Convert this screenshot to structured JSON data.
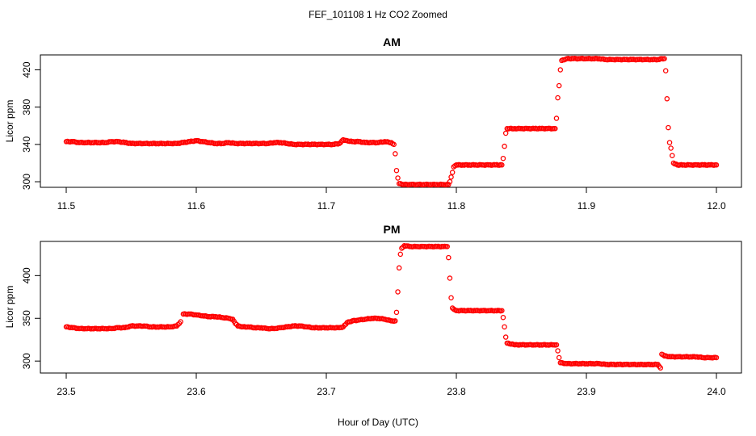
{
  "figure": {
    "title": "FEF_101108  1 Hz CO2 Zoomed",
    "xlabel": "Hour of Day (UTC)"
  },
  "chart_data": [
    {
      "type": "scatter",
      "title": "AM",
      "xlabel": "",
      "ylabel": "Licor ppm",
      "xlim": [
        11.5,
        12.0
      ],
      "ylim": [
        294,
        436
      ],
      "xticks": [
        11.5,
        11.6,
        11.7,
        11.8,
        11.9,
        12.0
      ],
      "xtick_labels": [
        "11.5",
        "11.6",
        "11.7",
        "11.8",
        "11.9",
        "12.0"
      ],
      "yticks": [
        300,
        340,
        380,
        420
      ],
      "ytick_labels": [
        "300",
        "340",
        "380",
        "420"
      ],
      "marker": "open-circle",
      "color": "#ff0000",
      "grid": false,
      "points": [
        {
          "x": 11.5,
          "y": 343
        },
        {
          "x": 11.505,
          "y": 343
        },
        {
          "x": 11.51,
          "y": 342
        },
        {
          "x": 11.515,
          "y": 342
        },
        {
          "x": 11.52,
          "y": 342
        },
        {
          "x": 11.525,
          "y": 342
        },
        {
          "x": 11.53,
          "y": 342
        },
        {
          "x": 11.535,
          "y": 343
        },
        {
          "x": 11.54,
          "y": 343
        },
        {
          "x": 11.545,
          "y": 342
        },
        {
          "x": 11.55,
          "y": 341
        },
        {
          "x": 11.555,
          "y": 341
        },
        {
          "x": 11.56,
          "y": 341
        },
        {
          "x": 11.565,
          "y": 341
        },
        {
          "x": 11.57,
          "y": 341
        },
        {
          "x": 11.575,
          "y": 341
        },
        {
          "x": 11.58,
          "y": 341
        },
        {
          "x": 11.585,
          "y": 341
        },
        {
          "x": 11.59,
          "y": 342
        },
        {
          "x": 11.595,
          "y": 343
        },
        {
          "x": 11.6,
          "y": 344
        },
        {
          "x": 11.605,
          "y": 343
        },
        {
          "x": 11.61,
          "y": 342
        },
        {
          "x": 11.615,
          "y": 341
        },
        {
          "x": 11.62,
          "y": 341
        },
        {
          "x": 11.625,
          "y": 342
        },
        {
          "x": 11.63,
          "y": 341
        },
        {
          "x": 11.635,
          "y": 341
        },
        {
          "x": 11.64,
          "y": 341
        },
        {
          "x": 11.645,
          "y": 341
        },
        {
          "x": 11.65,
          "y": 341
        },
        {
          "x": 11.655,
          "y": 341
        },
        {
          "x": 11.66,
          "y": 342
        },
        {
          "x": 11.665,
          "y": 342
        },
        {
          "x": 11.67,
          "y": 341
        },
        {
          "x": 11.675,
          "y": 340
        },
        {
          "x": 11.68,
          "y": 340
        },
        {
          "x": 11.685,
          "y": 340
        },
        {
          "x": 11.69,
          "y": 340
        },
        {
          "x": 11.695,
          "y": 340
        },
        {
          "x": 11.7,
          "y": 340
        },
        {
          "x": 11.705,
          "y": 340
        },
        {
          "x": 11.71,
          "y": 341
        },
        {
          "x": 11.713,
          "y": 345
        },
        {
          "x": 11.716,
          "y": 344
        },
        {
          "x": 11.72,
          "y": 343
        },
        {
          "x": 11.725,
          "y": 343
        },
        {
          "x": 11.73,
          "y": 342
        },
        {
          "x": 11.735,
          "y": 342
        },
        {
          "x": 11.74,
          "y": 342
        },
        {
          "x": 11.745,
          "y": 343
        },
        {
          "x": 11.75,
          "y": 342
        },
        {
          "x": 11.752,
          "y": 340
        },
        {
          "x": 11.753,
          "y": 330
        },
        {
          "x": 11.754,
          "y": 312
        },
        {
          "x": 11.755,
          "y": 304
        },
        {
          "x": 11.756,
          "y": 298
        },
        {
          "x": 11.76,
          "y": 297
        },
        {
          "x": 11.765,
          "y": 297
        },
        {
          "x": 11.77,
          "y": 297
        },
        {
          "x": 11.775,
          "y": 297
        },
        {
          "x": 11.78,
          "y": 297
        },
        {
          "x": 11.785,
          "y": 297
        },
        {
          "x": 11.79,
          "y": 297
        },
        {
          "x": 11.794,
          "y": 297
        },
        {
          "x": 11.795,
          "y": 300
        },
        {
          "x": 11.796,
          "y": 305
        },
        {
          "x": 11.797,
          "y": 310
        },
        {
          "x": 11.798,
          "y": 316
        },
        {
          "x": 11.8,
          "y": 318
        },
        {
          "x": 11.805,
          "y": 318
        },
        {
          "x": 11.81,
          "y": 318
        },
        {
          "x": 11.815,
          "y": 318
        },
        {
          "x": 11.82,
          "y": 318
        },
        {
          "x": 11.825,
          "y": 318
        },
        {
          "x": 11.83,
          "y": 318
        },
        {
          "x": 11.835,
          "y": 318
        },
        {
          "x": 11.836,
          "y": 325
        },
        {
          "x": 11.837,
          "y": 338
        },
        {
          "x": 11.838,
          "y": 352
        },
        {
          "x": 11.839,
          "y": 357
        },
        {
          "x": 11.845,
          "y": 357
        },
        {
          "x": 11.85,
          "y": 357
        },
        {
          "x": 11.855,
          "y": 357
        },
        {
          "x": 11.86,
          "y": 357
        },
        {
          "x": 11.865,
          "y": 357
        },
        {
          "x": 11.87,
          "y": 357
        },
        {
          "x": 11.875,
          "y": 357
        },
        {
          "x": 11.876,
          "y": 357
        },
        {
          "x": 11.877,
          "y": 368
        },
        {
          "x": 11.878,
          "y": 390
        },
        {
          "x": 11.879,
          "y": 403
        },
        {
          "x": 11.88,
          "y": 420
        },
        {
          "x": 11.881,
          "y": 430
        },
        {
          "x": 11.885,
          "y": 432
        },
        {
          "x": 11.89,
          "y": 432
        },
        {
          "x": 11.895,
          "y": 432
        },
        {
          "x": 11.9,
          "y": 432
        },
        {
          "x": 11.905,
          "y": 432
        },
        {
          "x": 11.91,
          "y": 432
        },
        {
          "x": 11.915,
          "y": 431
        },
        {
          "x": 11.92,
          "y": 431
        },
        {
          "x": 11.925,
          "y": 431
        },
        {
          "x": 11.93,
          "y": 431
        },
        {
          "x": 11.935,
          "y": 431
        },
        {
          "x": 11.94,
          "y": 431
        },
        {
          "x": 11.945,
          "y": 431
        },
        {
          "x": 11.95,
          "y": 431
        },
        {
          "x": 11.955,
          "y": 431
        },
        {
          "x": 11.958,
          "y": 432
        },
        {
          "x": 11.96,
          "y": 432
        },
        {
          "x": 11.961,
          "y": 419
        },
        {
          "x": 11.962,
          "y": 389
        },
        {
          "x": 11.963,
          "y": 358
        },
        {
          "x": 11.964,
          "y": 342
        },
        {
          "x": 11.965,
          "y": 336
        },
        {
          "x": 11.966,
          "y": 328
        },
        {
          "x": 11.967,
          "y": 320
        },
        {
          "x": 11.97,
          "y": 318
        },
        {
          "x": 11.975,
          "y": 318
        },
        {
          "x": 11.98,
          "y": 318
        },
        {
          "x": 11.985,
          "y": 318
        },
        {
          "x": 11.99,
          "y": 318
        },
        {
          "x": 11.995,
          "y": 318
        },
        {
          "x": 12.0,
          "y": 318
        }
      ]
    },
    {
      "type": "scatter",
      "title": "PM",
      "xlabel": "",
      "ylabel": "Licor ppm",
      "xlim": [
        23.5,
        24.0
      ],
      "ylim": [
        286,
        440
      ],
      "xticks": [
        23.5,
        23.6,
        23.7,
        23.8,
        23.9,
        24.0
      ],
      "xtick_labels": [
        "23.5",
        "23.6",
        "23.7",
        "23.8",
        "23.9",
        "24.0"
      ],
      "yticks": [
        300,
        350,
        400
      ],
      "ytick_labels": [
        "300",
        "350",
        "400"
      ],
      "marker": "open-circle",
      "color": "#ff0000",
      "grid": false,
      "points": [
        {
          "x": 23.5,
          "y": 340
        },
        {
          "x": 23.505,
          "y": 339
        },
        {
          "x": 23.51,
          "y": 338
        },
        {
          "x": 23.515,
          "y": 338
        },
        {
          "x": 23.52,
          "y": 338
        },
        {
          "x": 23.525,
          "y": 338
        },
        {
          "x": 23.53,
          "y": 338
        },
        {
          "x": 23.535,
          "y": 338
        },
        {
          "x": 23.54,
          "y": 339
        },
        {
          "x": 23.545,
          "y": 339
        },
        {
          "x": 23.55,
          "y": 341
        },
        {
          "x": 23.555,
          "y": 341
        },
        {
          "x": 23.56,
          "y": 341
        },
        {
          "x": 23.565,
          "y": 340
        },
        {
          "x": 23.57,
          "y": 340
        },
        {
          "x": 23.575,
          "y": 340
        },
        {
          "x": 23.58,
          "y": 340
        },
        {
          "x": 23.585,
          "y": 341
        },
        {
          "x": 23.588,
          "y": 346
        },
        {
          "x": 23.59,
          "y": 355
        },
        {
          "x": 23.595,
          "y": 355
        },
        {
          "x": 23.6,
          "y": 354
        },
        {
          "x": 23.605,
          "y": 353
        },
        {
          "x": 23.61,
          "y": 352
        },
        {
          "x": 23.615,
          "y": 352
        },
        {
          "x": 23.62,
          "y": 351
        },
        {
          "x": 23.625,
          "y": 350
        },
        {
          "x": 23.628,
          "y": 349
        },
        {
          "x": 23.63,
          "y": 344
        },
        {
          "x": 23.632,
          "y": 341
        },
        {
          "x": 23.635,
          "y": 340
        },
        {
          "x": 23.64,
          "y": 340
        },
        {
          "x": 23.645,
          "y": 339
        },
        {
          "x": 23.65,
          "y": 339
        },
        {
          "x": 23.655,
          "y": 338
        },
        {
          "x": 23.66,
          "y": 338
        },
        {
          "x": 23.665,
          "y": 339
        },
        {
          "x": 23.67,
          "y": 340
        },
        {
          "x": 23.675,
          "y": 341
        },
        {
          "x": 23.68,
          "y": 341
        },
        {
          "x": 23.685,
          "y": 340
        },
        {
          "x": 23.69,
          "y": 339
        },
        {
          "x": 23.695,
          "y": 339
        },
        {
          "x": 23.7,
          "y": 339
        },
        {
          "x": 23.705,
          "y": 339
        },
        {
          "x": 23.71,
          "y": 339
        },
        {
          "x": 23.713,
          "y": 340
        },
        {
          "x": 23.716,
          "y": 345
        },
        {
          "x": 23.72,
          "y": 347
        },
        {
          "x": 23.725,
          "y": 348
        },
        {
          "x": 23.73,
          "y": 349
        },
        {
          "x": 23.735,
          "y": 350
        },
        {
          "x": 23.74,
          "y": 350
        },
        {
          "x": 23.745,
          "y": 349
        },
        {
          "x": 23.75,
          "y": 347
        },
        {
          "x": 23.753,
          "y": 347
        },
        {
          "x": 23.754,
          "y": 357
        },
        {
          "x": 23.755,
          "y": 381
        },
        {
          "x": 23.756,
          "y": 409
        },
        {
          "x": 23.757,
          "y": 425
        },
        {
          "x": 23.758,
          "y": 432
        },
        {
          "x": 23.76,
          "y": 435
        },
        {
          "x": 23.765,
          "y": 434
        },
        {
          "x": 23.77,
          "y": 434
        },
        {
          "x": 23.775,
          "y": 434
        },
        {
          "x": 23.78,
          "y": 434
        },
        {
          "x": 23.785,
          "y": 434
        },
        {
          "x": 23.79,
          "y": 434
        },
        {
          "x": 23.793,
          "y": 434
        },
        {
          "x": 23.794,
          "y": 421
        },
        {
          "x": 23.795,
          "y": 397
        },
        {
          "x": 23.796,
          "y": 374
        },
        {
          "x": 23.797,
          "y": 362
        },
        {
          "x": 23.8,
          "y": 359
        },
        {
          "x": 23.805,
          "y": 359
        },
        {
          "x": 23.81,
          "y": 359
        },
        {
          "x": 23.815,
          "y": 359
        },
        {
          "x": 23.82,
          "y": 359
        },
        {
          "x": 23.825,
          "y": 359
        },
        {
          "x": 23.83,
          "y": 359
        },
        {
          "x": 23.835,
          "y": 359
        },
        {
          "x": 23.836,
          "y": 351
        },
        {
          "x": 23.837,
          "y": 340
        },
        {
          "x": 23.838,
          "y": 328
        },
        {
          "x": 23.839,
          "y": 321
        },
        {
          "x": 23.845,
          "y": 319
        },
        {
          "x": 23.85,
          "y": 319
        },
        {
          "x": 23.855,
          "y": 319
        },
        {
          "x": 23.86,
          "y": 319
        },
        {
          "x": 23.865,
          "y": 319
        },
        {
          "x": 23.87,
          "y": 319
        },
        {
          "x": 23.875,
          "y": 319
        },
        {
          "x": 23.877,
          "y": 319
        },
        {
          "x": 23.878,
          "y": 312
        },
        {
          "x": 23.879,
          "y": 304
        },
        {
          "x": 23.88,
          "y": 298
        },
        {
          "x": 23.885,
          "y": 297
        },
        {
          "x": 23.89,
          "y": 297
        },
        {
          "x": 23.895,
          "y": 297
        },
        {
          "x": 23.9,
          "y": 297
        },
        {
          "x": 23.905,
          "y": 297
        },
        {
          "x": 23.91,
          "y": 297
        },
        {
          "x": 23.915,
          "y": 296
        },
        {
          "x": 23.92,
          "y": 296
        },
        {
          "x": 23.925,
          "y": 296
        },
        {
          "x": 23.93,
          "y": 296
        },
        {
          "x": 23.935,
          "y": 296
        },
        {
          "x": 23.94,
          "y": 296
        },
        {
          "x": 23.945,
          "y": 296
        },
        {
          "x": 23.95,
          "y": 296
        },
        {
          "x": 23.955,
          "y": 296
        },
        {
          "x": 23.957,
          "y": 292
        },
        {
          "x": 23.958,
          "y": 308
        },
        {
          "x": 23.96,
          "y": 306
        },
        {
          "x": 23.965,
          "y": 305
        },
        {
          "x": 23.97,
          "y": 305
        },
        {
          "x": 23.975,
          "y": 305
        },
        {
          "x": 23.98,
          "y": 305
        },
        {
          "x": 23.985,
          "y": 305
        },
        {
          "x": 23.99,
          "y": 304
        },
        {
          "x": 23.995,
          "y": 304
        },
        {
          "x": 24.0,
          "y": 304
        }
      ]
    }
  ]
}
